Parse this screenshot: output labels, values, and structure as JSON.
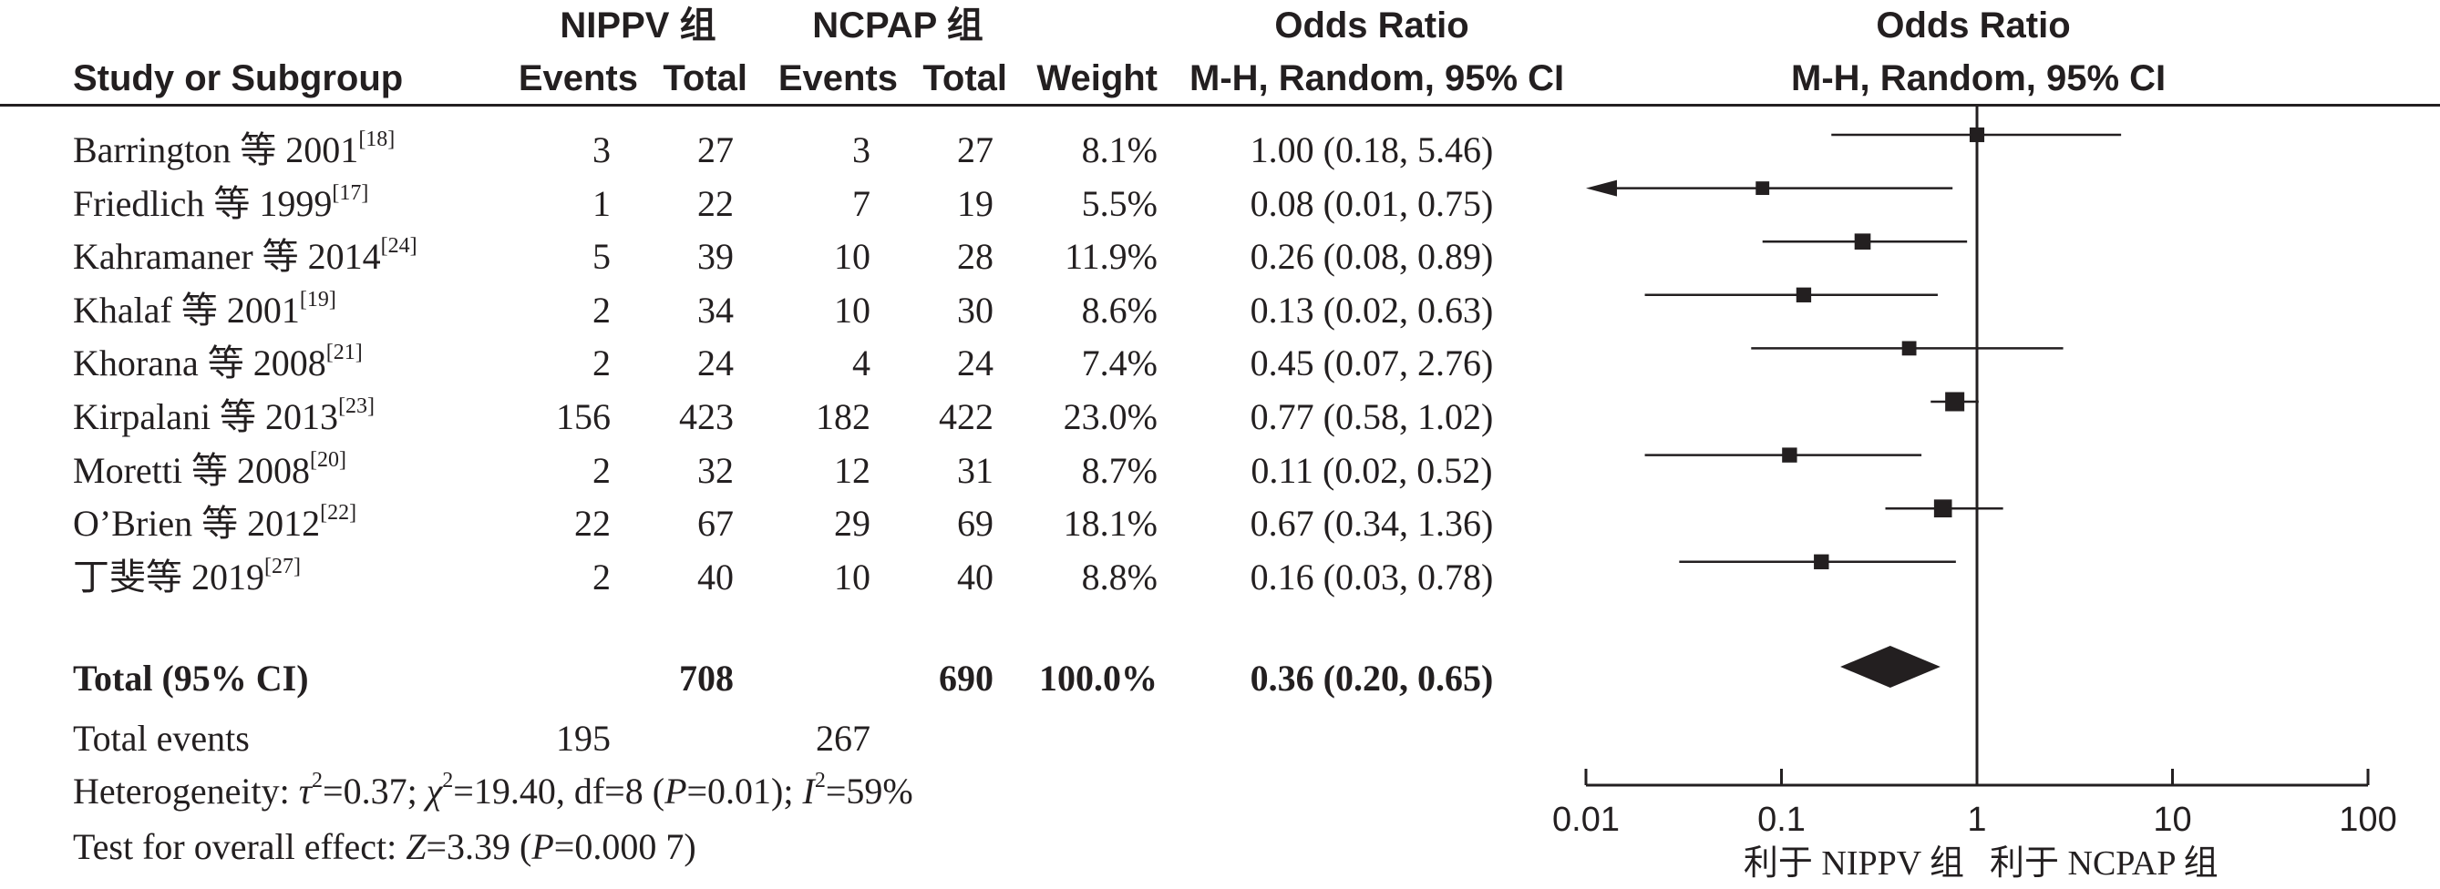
{
  "header": {
    "group_nippv": "NIPPV 组",
    "group_ncpap": "NCPAP 组",
    "odds_ratio": "Odds Ratio",
    "study": "Study or Subgroup",
    "events": "Events",
    "total": "Total",
    "weight": "Weight",
    "method": "M-H, Random, 95% CI",
    "plot_odds_ratio": "Odds Ratio",
    "plot_method": "M-H, Random, 95% CI"
  },
  "studies": [
    {
      "name": "Barrington 等 2001",
      "ref": "[18]",
      "e1": "3",
      "t1": "27",
      "e2": "3",
      "t2": "27",
      "weight": "8.1%",
      "ci_text": "1.00 (0.18, 5.46)"
    },
    {
      "name": "Friedlich 等 1999",
      "ref": "[17]",
      "e1": "1",
      "t1": "22",
      "e2": "7",
      "t2": "19",
      "weight": "5.5%",
      "ci_text": "0.08 (0.01, 0.75)"
    },
    {
      "name": "Kahramaner 等 2014",
      "ref": "[24]",
      "e1": "5",
      "t1": "39",
      "e2": "10",
      "t2": "28",
      "weight": "11.9%",
      "ci_text": "0.26 (0.08, 0.89)"
    },
    {
      "name": "Khalaf 等 2001",
      "ref": "[19]",
      "e1": "2",
      "t1": "34",
      "e2": "10",
      "t2": "30",
      "weight": "8.6%",
      "ci_text": "0.13 (0.02, 0.63)"
    },
    {
      "name": "Khorana 等 2008",
      "ref": "[21]",
      "e1": "2",
      "t1": "24",
      "e2": "4",
      "t2": "24",
      "weight": "7.4%",
      "ci_text": "0.45 (0.07, 2.76)"
    },
    {
      "name": "Kirpalani 等 2013",
      "ref": "[23]",
      "e1": "156",
      "t1": "423",
      "e2": "182",
      "t2": "422",
      "weight": "23.0%",
      "ci_text": "0.77 (0.58, 1.02)"
    },
    {
      "name": "Moretti 等 2008",
      "ref": "[20]",
      "e1": "2",
      "t1": "32",
      "e2": "12",
      "t2": "31",
      "weight": "8.7%",
      "ci_text": "0.11 (0.02, 0.52)"
    },
    {
      "name": "O’Brien 等 2012",
      "ref": "[22]",
      "e1": "22",
      "t1": "67",
      "e2": "29",
      "t2": "69",
      "weight": "18.1%",
      "ci_text": "0.67 (0.34, 1.36)"
    },
    {
      "name": "丁斐等 2019",
      "ref": "[27]",
      "e1": "2",
      "t1": "40",
      "e2": "10",
      "t2": "40",
      "weight": "8.8%",
      "ci_text": "0.16 (0.03, 0.78)"
    }
  ],
  "total": {
    "label": "Total (95% CI)",
    "t1": "708",
    "t2": "690",
    "weight": "100.0%",
    "ci_text": "0.36 (0.20, 0.65)"
  },
  "total_events": {
    "label": "Total events",
    "e1": "195",
    "e2": "267"
  },
  "footer": {
    "heterogeneity_prefix": "Heterogeneity: ",
    "tau_sym": "τ",
    "tau_val": "=0.37; ",
    "chi_sym": "χ",
    "chi_val": "=19.40, df=8 (",
    "p_sym": "P",
    "p_val": "=0.01); ",
    "i_sym": "I",
    "i_val": "=59%",
    "sq": "2",
    "overall_prefix": "Test for overall effect: ",
    "z_sym": "Z",
    "z_val": "=3.39 (",
    "p2_sym": "P",
    "p2_val": "=0.000 7)"
  },
  "chart_data": {
    "type": "forest",
    "xscale": "log",
    "xlim": [
      0.01,
      100
    ],
    "ticks": [
      0.01,
      0.1,
      1,
      10,
      100
    ],
    "tick_labels": [
      "0.01",
      "0.1",
      "1",
      "10",
      "100"
    ],
    "favours_left": "利于 NIPPV 组",
    "favours_right": "利于 NCPAP 组",
    "studies": [
      {
        "or": 1.0,
        "lo": 0.18,
        "hi": 5.46,
        "weight": 8.1
      },
      {
        "or": 0.08,
        "lo": 0.01,
        "hi": 0.75,
        "weight": 5.5
      },
      {
        "or": 0.26,
        "lo": 0.08,
        "hi": 0.89,
        "weight": 11.9
      },
      {
        "or": 0.13,
        "lo": 0.02,
        "hi": 0.63,
        "weight": 8.6
      },
      {
        "or": 0.45,
        "lo": 0.07,
        "hi": 2.76,
        "weight": 7.4
      },
      {
        "or": 0.77,
        "lo": 0.58,
        "hi": 1.02,
        "weight": 23.0
      },
      {
        "or": 0.11,
        "lo": 0.02,
        "hi": 0.52,
        "weight": 8.7
      },
      {
        "or": 0.67,
        "lo": 0.34,
        "hi": 1.36,
        "weight": 18.1
      },
      {
        "or": 0.16,
        "lo": 0.03,
        "hi": 0.78,
        "weight": 8.8
      }
    ],
    "pooled": {
      "or": 0.36,
      "lo": 0.2,
      "hi": 0.65
    }
  }
}
